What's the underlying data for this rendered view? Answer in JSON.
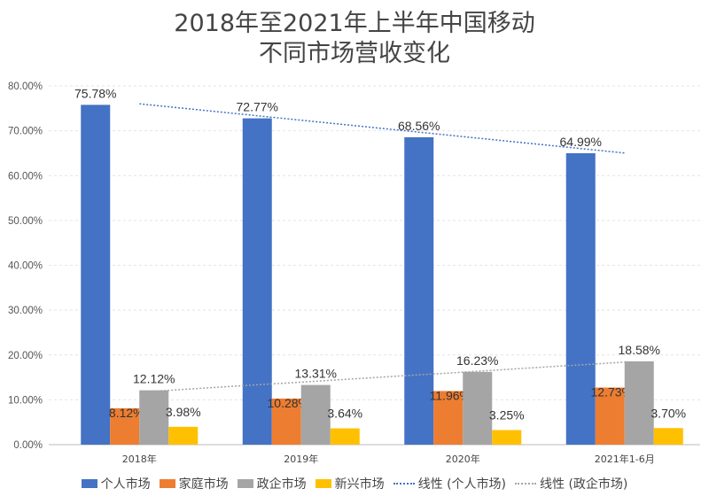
{
  "chart_data": {
    "type": "bar",
    "title_line1": "2018年至2021年上半年中国移动",
    "title_line2": "不同市场营收变化",
    "categories": [
      "2018年",
      "2019年",
      "2020年",
      "2021年1-6月"
    ],
    "ylim": [
      0,
      80
    ],
    "yticks": [
      "0.00%",
      "10.00%",
      "20.00%",
      "30.00%",
      "40.00%",
      "50.00%",
      "60.00%",
      "70.00%",
      "80.00%"
    ],
    "grid": true,
    "legend_position": "bottom",
    "series": [
      {
        "name": "个人市场",
        "values": [
          75.78,
          72.77,
          68.56,
          64.99
        ],
        "labels": [
          "75.78%",
          "72.77%",
          "68.56%",
          "64.99%"
        ],
        "color": "#4472C4"
      },
      {
        "name": "家庭市场",
        "values": [
          8.12,
          10.28,
          11.96,
          12.73
        ],
        "labels": [
          "8.12%",
          "10.28%",
          "11.96%",
          "12.73%"
        ],
        "color": "#ED7D31"
      },
      {
        "name": "政企市场",
        "values": [
          12.12,
          13.31,
          16.23,
          18.58
        ],
        "labels": [
          "12.12%",
          "13.31%",
          "16.23%",
          "18.58%"
        ],
        "color": "#A5A5A5"
      },
      {
        "name": "新兴市场",
        "values": [
          3.98,
          3.64,
          3.25,
          3.7
        ],
        "labels": [
          "3.98%",
          "3.64%",
          "3.25%",
          "3.70%"
        ],
        "color": "#FFC000"
      }
    ],
    "trendlines": [
      {
        "name": "线性 (个人市场)",
        "of": 0,
        "color": "#4472C4"
      },
      {
        "name": "线性 (政企市场)",
        "of": 2,
        "color": "#A5A5A5"
      }
    ]
  }
}
